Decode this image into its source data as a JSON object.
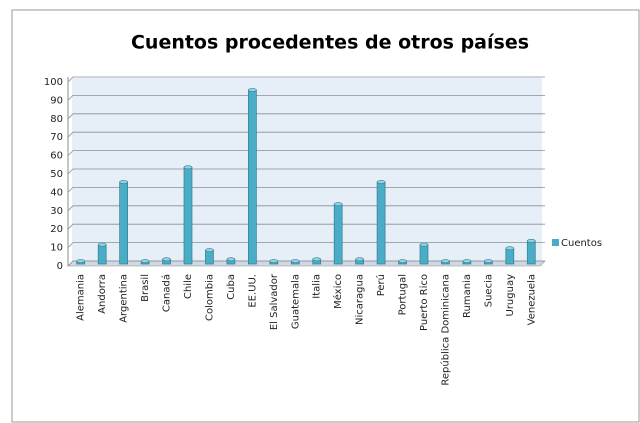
{
  "chart_data": {
    "type": "bar",
    "title": "Cuentos procedentes de otros países",
    "categories": [
      "Alemania",
      "Andorra",
      "Argentina",
      "Brasil",
      "Canadá",
      "Chile",
      "Colombia",
      "Cuba",
      "EE.UU.",
      "El Salvador",
      "Guatemala",
      "Italia",
      "México",
      "Nicaragua",
      "Perú",
      "Portugal",
      "Puerto Rico",
      "República Dominicana",
      "Rumania",
      "Suecia",
      "Uruguay",
      "Venezuela"
    ],
    "series": [
      {
        "name": "Cuentos",
        "color": "#4bacc6",
        "values": [
          1,
          10,
          44,
          1,
          2,
          52,
          7,
          2,
          94,
          1,
          1,
          2,
          32,
          2,
          44,
          1,
          10,
          1,
          1,
          1,
          8,
          12
        ]
      }
    ],
    "ylim": [
      0,
      100
    ],
    "yticks": [
      0,
      10,
      20,
      30,
      40,
      50,
      60,
      70,
      80,
      90,
      100
    ],
    "grid": true,
    "legend": "right"
  }
}
